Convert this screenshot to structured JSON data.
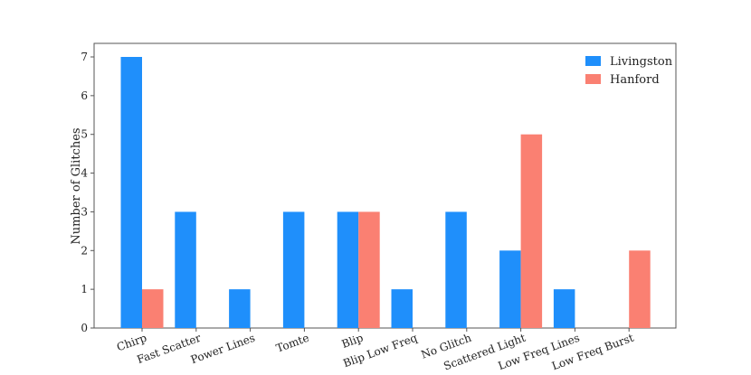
{
  "chart_data": {
    "type": "bar",
    "title": "",
    "xlabel": "",
    "ylabel": "Number of Glitches",
    "ylim": [
      0,
      7.35
    ],
    "yticks": [
      0,
      1,
      2,
      3,
      4,
      5,
      6,
      7
    ],
    "categories": [
      "Chirp",
      "Fast Scatter",
      "Power Lines",
      "Tomte",
      "Blip",
      "Blip Low Freq",
      "No Glitch",
      "Scattered Light",
      "Low Freq Lines",
      "Low Freq Burst"
    ],
    "series": [
      {
        "name": "Livingston",
        "color": "#1f8ffb",
        "values": [
          7,
          3,
          1,
          3,
          3,
          1,
          3,
          2,
          1,
          0
        ]
      },
      {
        "name": "Hanford",
        "color": "#fa8072",
        "values": [
          1,
          0,
          0,
          0,
          3,
          0,
          0,
          5,
          0,
          2
        ]
      }
    ],
    "legend_position": "top-right",
    "grid": false
  }
}
